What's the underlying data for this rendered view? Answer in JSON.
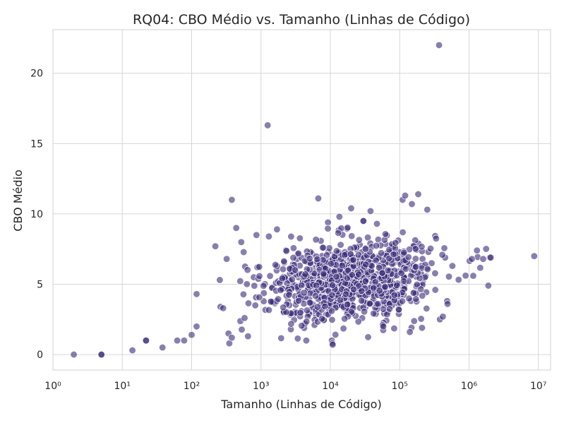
{
  "chart_data": {
    "type": "scatter",
    "title": "RQ04: CBO Médio vs. Tamanho (Linhas de Código)",
    "xlabel": "Tamanho (Linhas de Código)",
    "ylabel": "CBO Médio",
    "x_scale": "log",
    "xlim": [
      1,
      15000000
    ],
    "ylim": [
      -1.1,
      23.1
    ],
    "x_ticks": [
      {
        "value": 1,
        "label": "10⁰"
      },
      {
        "value": 10,
        "label": "10¹"
      },
      {
        "value": 100,
        "label": "10²"
      },
      {
        "value": 1000,
        "label": "10³"
      },
      {
        "value": 10000,
        "label": "10⁴"
      },
      {
        "value": 100000,
        "label": "10⁵"
      },
      {
        "value": 1000000,
        "label": "10⁶"
      },
      {
        "value": 10000000,
        "label": "10⁷"
      }
    ],
    "y_ticks": [
      {
        "value": 0,
        "label": "0"
      },
      {
        "value": 5,
        "label": "5"
      },
      {
        "value": 10,
        "label": "10"
      },
      {
        "value": 15,
        "label": "15"
      },
      {
        "value": 20,
        "label": "20"
      }
    ],
    "grid": true,
    "point_color": "#3b2a78",
    "point_opacity": 0.6,
    "outlier_points": [
      {
        "x": 2,
        "y": 0
      },
      {
        "x": 5,
        "y": 0
      },
      {
        "x": 5,
        "y": 0
      },
      {
        "x": 14,
        "y": 0.3
      },
      {
        "x": 22,
        "y": 1.0
      },
      {
        "x": 22,
        "y": 1.0
      },
      {
        "x": 38,
        "y": 0.5
      },
      {
        "x": 62,
        "y": 1.0
      },
      {
        "x": 78,
        "y": 1.0
      },
      {
        "x": 100,
        "y": 1.4
      },
      {
        "x": 118,
        "y": 2.0
      },
      {
        "x": 118,
        "y": 4.3
      },
      {
        "x": 220,
        "y": 7.7
      },
      {
        "x": 255,
        "y": 5.3
      },
      {
        "x": 260,
        "y": 3.4
      },
      {
        "x": 285,
        "y": 3.3
      },
      {
        "x": 320,
        "y": 6.8
      },
      {
        "x": 340,
        "y": 1.5
      },
      {
        "x": 350,
        "y": 0.8
      },
      {
        "x": 380,
        "y": 11.0
      },
      {
        "x": 380,
        "y": 1.2
      },
      {
        "x": 440,
        "y": 9.0
      },
      {
        "x": 520,
        "y": 8.0
      },
      {
        "x": 580,
        "y": 2.6
      },
      {
        "x": 650,
        "y": 1.3
      },
      {
        "x": 860,
        "y": 8.5
      },
      {
        "x": 1250,
        "y": 16.3
      },
      {
        "x": 1300,
        "y": 8.4
      },
      {
        "x": 1700,
        "y": 8.9
      },
      {
        "x": 6700,
        "y": 11.1
      },
      {
        "x": 10500,
        "y": 1.0
      },
      {
        "x": 10700,
        "y": 0.8
      },
      {
        "x": 10800,
        "y": 0.7
      },
      {
        "x": 13500,
        "y": 9.8
      },
      {
        "x": 20000,
        "y": 10.4
      },
      {
        "x": 38000,
        "y": 10.2
      },
      {
        "x": 47000,
        "y": 9.3
      },
      {
        "x": 57000,
        "y": 2.1
      },
      {
        "x": 58000,
        "y": 2.0
      },
      {
        "x": 110000,
        "y": 11.0
      },
      {
        "x": 120000,
        "y": 11.3
      },
      {
        "x": 140000,
        "y": 1.6
      },
      {
        "x": 150000,
        "y": 10.7
      },
      {
        "x": 185000,
        "y": 11.4
      },
      {
        "x": 210000,
        "y": 1.9
      },
      {
        "x": 250000,
        "y": 10.3
      },
      {
        "x": 370000,
        "y": 22.0
      },
      {
        "x": 380000,
        "y": 2.5
      },
      {
        "x": 420000,
        "y": 2.7
      },
      {
        "x": 490000,
        "y": 3.6
      },
      {
        "x": 1100000,
        "y": 6.8
      },
      {
        "x": 1150000,
        "y": 5.6
      },
      {
        "x": 1300000,
        "y": 7.4
      },
      {
        "x": 1600000,
        "y": 6.8
      },
      {
        "x": 1900000,
        "y": 4.9
      },
      {
        "x": 2000000,
        "y": 6.9
      },
      {
        "x": 2050000,
        "y": 6.9
      },
      {
        "x": 8700000,
        "y": 7.0
      }
    ],
    "cluster": {
      "count": 900,
      "log10_x_range": [
        2.5,
        6.3
      ],
      "y_center_at_log10x_3": 4.6,
      "y_center_slope_per_decade": 0.55,
      "y_spread": 1.45,
      "y_range": [
        1.0,
        9.5
      ]
    }
  }
}
